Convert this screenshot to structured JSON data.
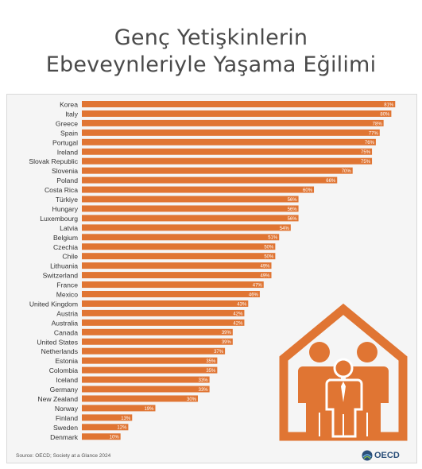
{
  "title_line1": "Genç Yetişkinlerin",
  "title_line2": "Ebeveynleriyle Yaşama Eğilimi",
  "source": "Source: OECD; Society at a Glance 2024",
  "logo": {
    "text": "OECD",
    "icon": "oecd-globe-icon"
  },
  "colors": {
    "bar": "#e07533",
    "house": "#e07533",
    "label": "#333333"
  },
  "illustration": {
    "icon": "house-family-icon"
  },
  "chart_data": {
    "type": "bar",
    "orientation": "horizontal",
    "title": "Genç Yetişkinlerin Ebeveynleriyle Yaşama Eğilimi",
    "categories": [
      "Korea",
      "Italy",
      "Greece",
      "Spain",
      "Portugal",
      "Ireland",
      "Slovak Republic",
      "Slovenia",
      "Poland",
      "Costa Rica",
      "Türkiye",
      "Hungary",
      "Luxembourg",
      "Latvia",
      "Belgium",
      "Czechia",
      "Chile",
      "Lithuania",
      "Switzerland",
      "France",
      "Mexico",
      "United Kingdom",
      "Austria",
      "Australia",
      "Canada",
      "United States",
      "Netherlands",
      "Estonia",
      "Colombia",
      "Iceland",
      "Germany",
      "New Zealand",
      "Norway",
      "Finland",
      "Sweden",
      "Denmark"
    ],
    "values": [
      81,
      80,
      78,
      77,
      76,
      75,
      75,
      70,
      66,
      60,
      56,
      56,
      56,
      54,
      51,
      50,
      50,
      49,
      49,
      47,
      46,
      43,
      42,
      42,
      39,
      39,
      37,
      35,
      35,
      33,
      33,
      30,
      19,
      13,
      12,
      10
    ],
    "value_suffix": "%",
    "xlim": [
      0,
      83
    ]
  }
}
